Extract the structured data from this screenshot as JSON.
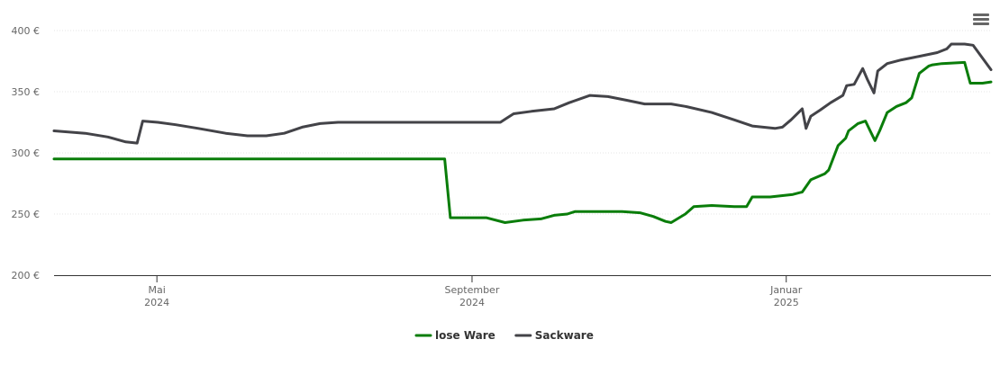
{
  "chart_data": {
    "type": "line",
    "xlim": [
      2024.224,
      2025.217
    ],
    "xticks": [
      {
        "value": 2024.333,
        "label": "Mai 2024"
      },
      {
        "value": 2024.667,
        "label": "September 2024"
      },
      {
        "value": 2025.0,
        "label": "Januar 2025"
      }
    ],
    "ylim": [
      200,
      400
    ],
    "yticks": [
      {
        "value": 200,
        "label": "200 €"
      },
      {
        "value": 250,
        "label": "250 €"
      },
      {
        "value": 300,
        "label": "300 €"
      },
      {
        "value": 350,
        "label": "350 €"
      },
      {
        "value": 400,
        "label": "400 €"
      }
    ],
    "grid": true,
    "legend": "bottom",
    "series": [
      {
        "name": "lose Ware",
        "color": "#0a7d0a",
        "x": [
          2024.224,
          2024.638,
          2024.644,
          2024.682,
          2024.702,
          2024.721,
          2024.74,
          2024.754,
          2024.768,
          2024.776,
          2024.826,
          2024.845,
          2024.859,
          2024.872,
          2024.878,
          2024.893,
          2024.902,
          2024.921,
          2024.945,
          2024.958,
          2024.964,
          2024.983,
          2025.007,
          2025.017,
          2025.026,
          2025.041,
          2025.045,
          2025.055,
          2025.063,
          2025.066,
          2025.076,
          2025.084,
          2025.089,
          2025.094,
          2025.099,
          2025.107,
          2025.117,
          2025.127,
          2025.133,
          2025.141,
          2025.151,
          2025.155,
          2025.165,
          2025.189,
          2025.195,
          2025.208,
          2025.217
        ],
        "values": [
          295,
          295,
          247,
          247,
          243,
          245,
          246,
          249,
          250,
          252,
          252,
          251,
          248,
          244,
          243,
          250,
          256,
          257,
          256,
          256,
          264,
          264,
          266,
          268,
          278,
          283,
          286,
          306,
          312,
          318,
          324,
          326,
          318,
          310,
          318,
          333,
          338,
          341,
          345,
          365,
          371,
          372,
          373,
          374,
          357,
          357,
          358
        ]
      },
      {
        "name": "Sackware",
        "color": "#434348",
        "x": [
          2024.224,
          2024.257,
          2024.281,
          2024.3,
          2024.312,
          2024.318,
          2024.334,
          2024.353,
          2024.377,
          2024.406,
          2024.429,
          2024.449,
          2024.468,
          2024.487,
          2024.506,
          2024.525,
          2024.697,
          2024.703,
          2024.711,
          2024.73,
          2024.754,
          2024.77,
          2024.792,
          2024.811,
          2024.831,
          2024.85,
          2024.878,
          2024.893,
          2024.921,
          2024.945,
          2024.964,
          2024.988,
          2024.996,
          2025.005,
          2025.017,
          2025.021,
          2025.026,
          2025.036,
          2025.047,
          2025.06,
          2025.064,
          2025.072,
          2025.081,
          2025.086,
          2025.093,
          2025.097,
          2025.107,
          2025.122,
          2025.141,
          2025.16,
          2025.17,
          2025.175,
          2025.189,
          2025.198,
          2025.217
        ],
        "values": [
          318,
          316,
          313,
          309,
          308,
          326,
          325,
          323,
          320,
          316,
          314,
          314,
          316,
          321,
          324,
          325,
          325,
          328,
          332,
          334,
          336,
          341,
          347,
          346,
          343,
          340,
          340,
          338,
          333,
          327,
          322,
          320,
          321,
          327,
          336,
          320,
          330,
          335,
          341,
          347,
          355,
          356,
          369,
          360,
          349,
          367,
          373,
          376,
          379,
          382,
          385,
          389,
          389,
          388,
          368
        ]
      }
    ]
  }
}
